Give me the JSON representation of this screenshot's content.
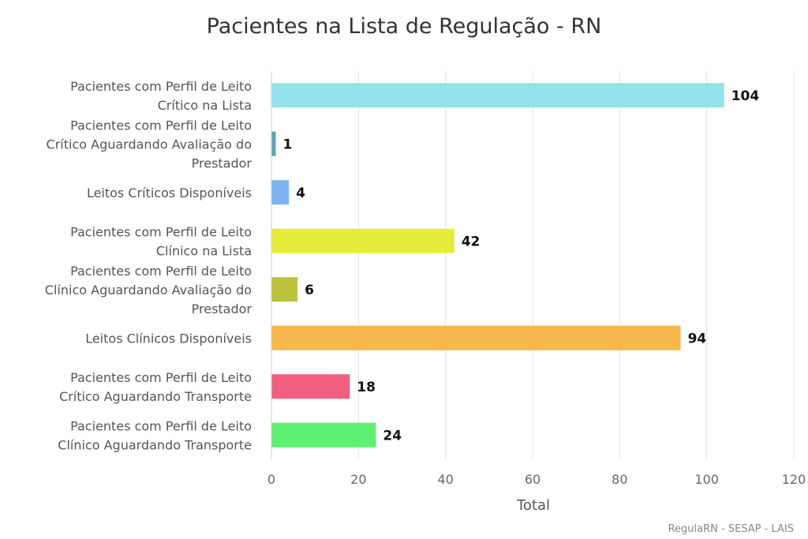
{
  "chart_data": {
    "type": "bar",
    "orientation": "horizontal",
    "title": "Pacientes na Lista de Regulação - RN",
    "xlabel": "Total",
    "xlim": [
      0,
      120
    ],
    "x_ticks": [
      "0",
      "20",
      "40",
      "60",
      "80",
      "100",
      "120"
    ],
    "grid": true,
    "legend": false,
    "categories": [
      [
        "Pacientes com Perfil de Leito",
        "Crítico na Lista"
      ],
      [
        "Pacientes com Perfil de Leito",
        "Crítico Aguardando Avaliação do",
        "Prestador"
      ],
      [
        "Leitos Críticos Disponíveis"
      ],
      [
        "Pacientes com Perfil de Leito",
        "Clínico na Lista"
      ],
      [
        "Pacientes com Perfil de Leito",
        "Clínico Aguardando Avaliação do",
        "Prestador"
      ],
      [
        "Leitos Clínicos Disponíveis"
      ],
      [
        "Pacientes com Perfil de Leito",
        "Crítico Aguardando Transporte"
      ],
      [
        "Pacientes com Perfil de Leito",
        "Clínico Aguardando Transporte"
      ]
    ],
    "values": [
      104,
      1,
      4,
      42,
      6,
      94,
      18,
      24
    ],
    "colors": [
      "#93e2ed",
      "#5aa5ae",
      "#7db3ee",
      "#e4ee3a",
      "#bdc13a",
      "#f5b64b",
      "#f25e7f",
      "#5df072"
    ],
    "credits": "RegulaRN - SESAP - LAIS"
  }
}
